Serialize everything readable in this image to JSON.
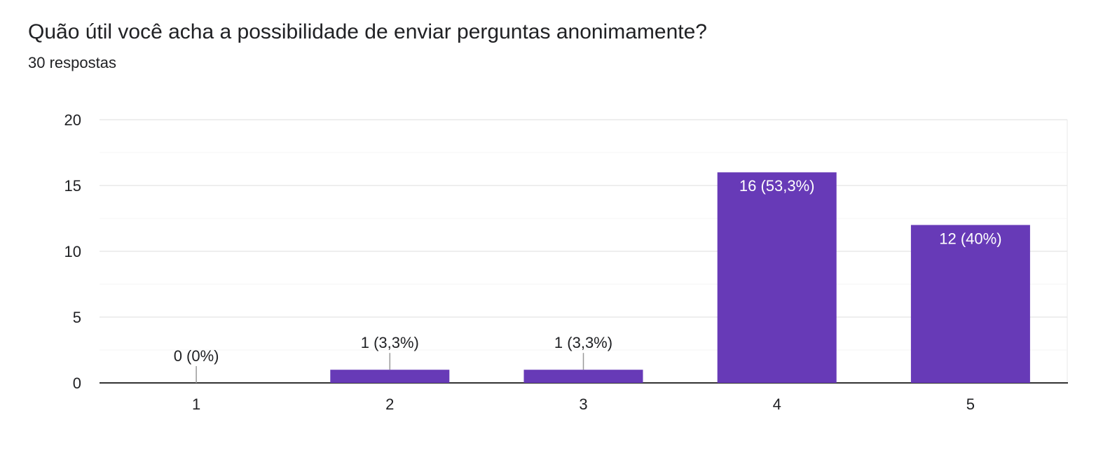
{
  "header": {
    "title": "Quão útil você acha a possibilidade de enviar perguntas anonimamente?",
    "subtitle": "30 respostas"
  },
  "colors": {
    "bar": "#673ab7",
    "grid_major": "#e8e8e8",
    "grid_minor": "#f4f4f4",
    "axis": "#333333",
    "text": "#202124",
    "label_inside": "#ffffff"
  },
  "chart_data": {
    "type": "bar",
    "categories": [
      "1",
      "2",
      "3",
      "4",
      "5"
    ],
    "values": [
      0,
      1,
      1,
      16,
      12
    ],
    "data_labels": [
      "0 (0%)",
      "1 (3,3%)",
      "1 (3,3%)",
      "16 (53,3%)",
      "12 (40%)"
    ],
    "ylim": [
      0,
      20
    ],
    "yticks": [
      0,
      5,
      10,
      15,
      20
    ],
    "ytick_labels": [
      "0",
      "5",
      "10",
      "15",
      "20"
    ],
    "grid": true,
    "legend": "none"
  }
}
